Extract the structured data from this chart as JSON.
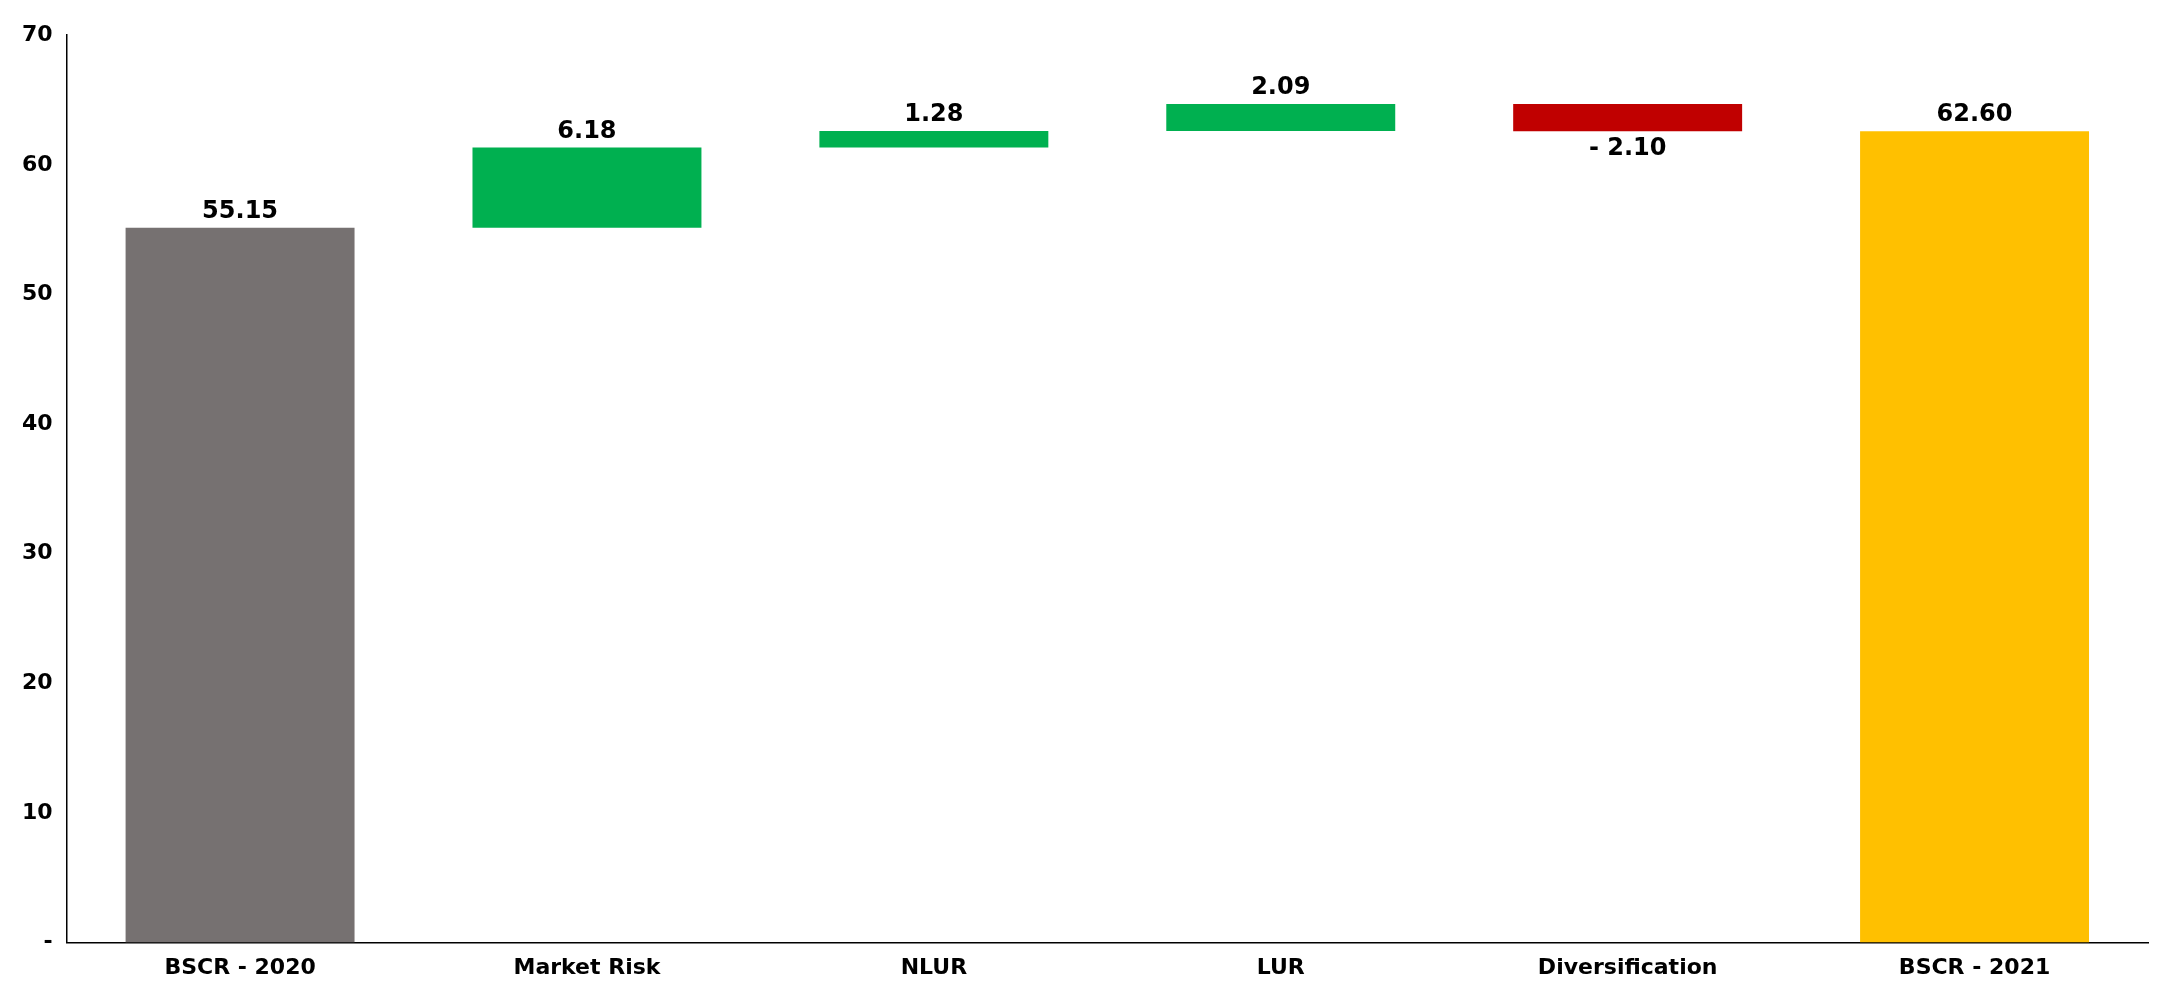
{
  "chart_data": {
    "type": "bar",
    "categories": [
      "BSCR - 2020",
      "Market Risk",
      "NLUR",
      "LUR",
      "Diversification",
      "BSCR - 2021"
    ],
    "values": [
      55.15,
      6.18,
      1.28,
      2.09,
      -2.1,
      62.6
    ],
    "base": [
      0,
      55.15,
      61.33,
      62.61,
      64.7,
      0
    ],
    "colors": [
      "#767171",
      "#00b050",
      "#00b050",
      "#00b050",
      "#c00000",
      "#ffc000"
    ],
    "value_labels": [
      "55.15",
      "6.18",
      "1.28",
      "2.09",
      "- 2.10",
      "62.60"
    ],
    "ylim": [
      0,
      70
    ],
    "yticks": [
      {
        "value": 0,
        "label": "-"
      },
      10,
      20,
      30,
      40,
      50,
      60,
      70
    ],
    "grid": false,
    "legend": false
  }
}
